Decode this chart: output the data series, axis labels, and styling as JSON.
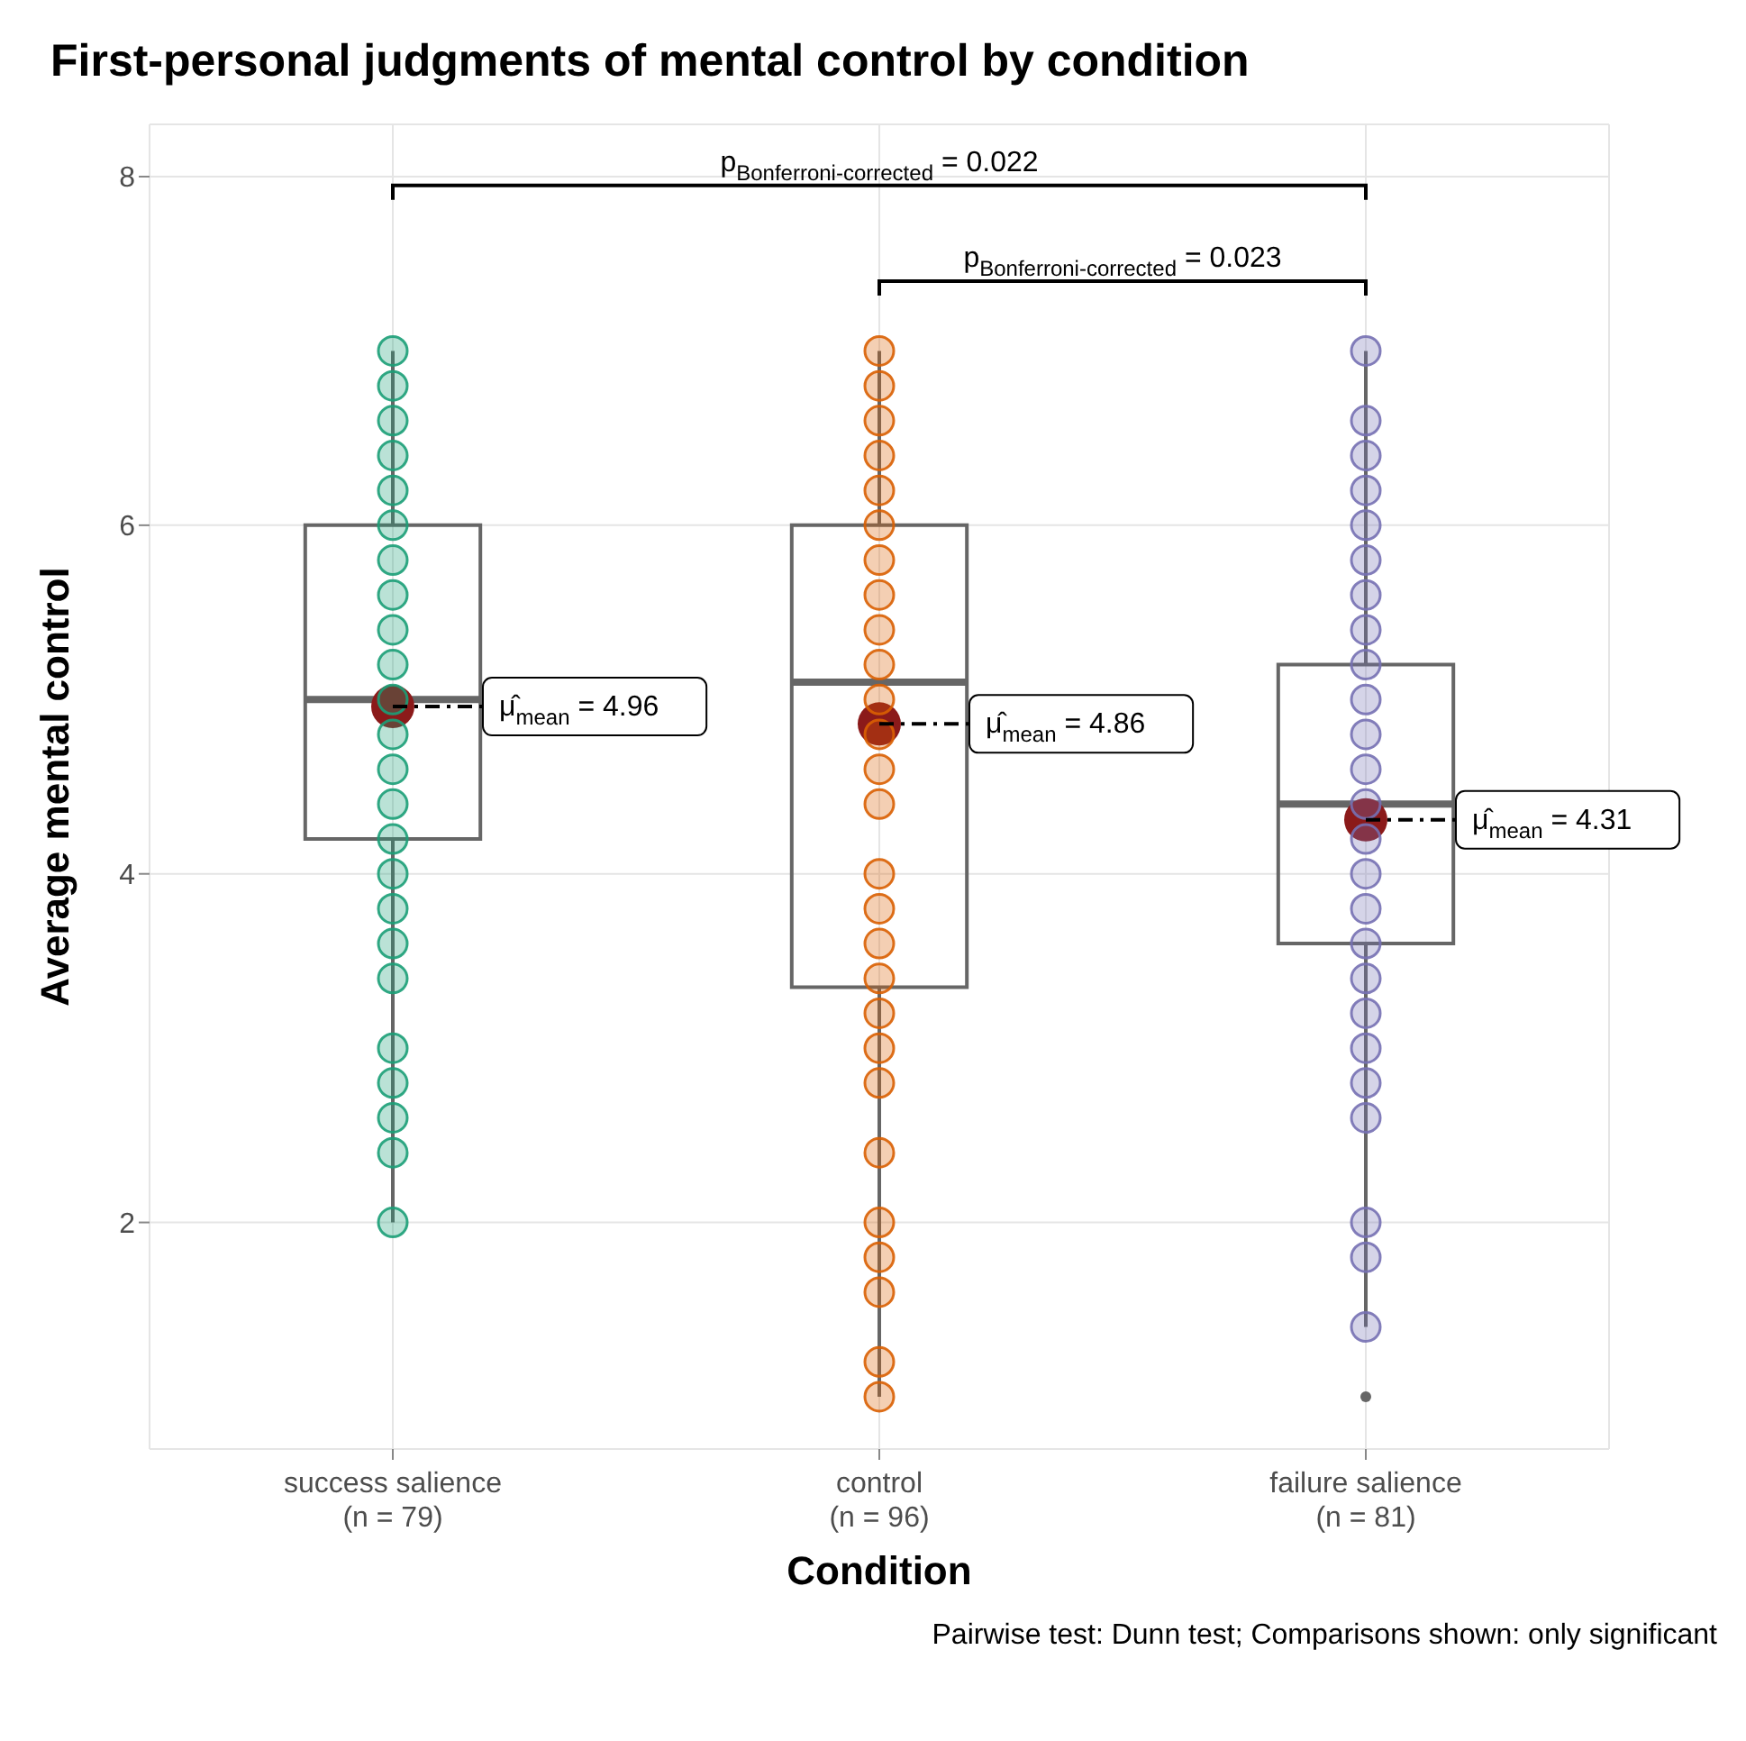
{
  "chart_data": {
    "type": "box",
    "title": "First-personal judgments of mental control by condition",
    "xlabel": "Condition",
    "ylabel": "Average mental control",
    "categories": [
      "success salience\n(n = 79)",
      "control\n(n = 96)",
      "failure salience\n(n = 81)"
    ],
    "boxes": [
      {
        "low": 2,
        "q1": 4.2,
        "median": 5,
        "q3": 6,
        "high": 7,
        "mean": 4.96
      },
      {
        "low": 1,
        "q1": 3.35,
        "median": 5.1,
        "q3": 6,
        "high": 7,
        "mean": 4.86
      },
      {
        "low": 1.4,
        "q1": 3.6,
        "median": 4.4,
        "q3": 5.2,
        "high": 7,
        "mean": 4.31,
        "outliers": [
          1
        ]
      }
    ],
    "series": [
      {
        "type": "scatter",
        "color": "#1b9e77",
        "x": [
          "success salience\n(n = 79)",
          "success salience\n(n = 79)",
          "success salience\n(n = 79)",
          "success salience\n(n = 79)",
          "success salience\n(n = 79)",
          "success salience\n(n = 79)",
          "success salience\n(n = 79)",
          "success salience\n(n = 79)",
          "success salience\n(n = 79)",
          "success salience\n(n = 79)",
          "success salience\n(n = 79)",
          "success salience\n(n = 79)",
          "success salience\n(n = 79)",
          "success salience\n(n = 79)",
          "success salience\n(n = 79)",
          "success salience\n(n = 79)",
          "success salience\n(n = 79)",
          "success salience\n(n = 79)",
          "success salience\n(n = 79)",
          "success salience\n(n = 79)",
          "success salience\n(n = 79)",
          "success salience\n(n = 79)",
          "success salience\n(n = 79)",
          "success salience\n(n = 79)"
        ],
        "values": [
          7,
          6.8,
          6.6,
          6.4,
          6.2,
          6,
          5.8,
          5.6,
          5.4,
          5.2,
          5,
          4.8,
          4.6,
          4.4,
          4.2,
          4,
          3.8,
          3.6,
          3.4,
          3,
          2.8,
          2.6,
          2.4,
          2
        ]
      },
      {
        "type": "scatter",
        "color": "#d95f02",
        "x": [
          "control\n(n = 96)",
          "control\n(n = 96)",
          "control\n(n = 96)",
          "control\n(n = 96)",
          "control\n(n = 96)",
          "control\n(n = 96)",
          "control\n(n = 96)",
          "control\n(n = 96)",
          "control\n(n = 96)",
          "control\n(n = 96)",
          "control\n(n = 96)",
          "control\n(n = 96)",
          "control\n(n = 96)",
          "control\n(n = 96)",
          "control\n(n = 96)",
          "control\n(n = 96)",
          "control\n(n = 96)",
          "control\n(n = 96)",
          "control\n(n = 96)",
          "control\n(n = 96)",
          "control\n(n = 96)",
          "control\n(n = 96)",
          "control\n(n = 96)",
          "control\n(n = 96)",
          "control\n(n = 96)",
          "control\n(n = 96)",
          "control\n(n = 96)"
        ],
        "values": [
          7,
          6.8,
          6.6,
          6.4,
          6.2,
          6,
          5.8,
          5.6,
          5.4,
          5.2,
          5,
          4.8,
          4.6,
          4.4,
          4,
          3.8,
          3.6,
          3.4,
          3.2,
          3,
          2.8,
          2.4,
          2,
          1.8,
          1.6,
          1.2,
          1
        ]
      },
      {
        "type": "scatter",
        "color": "#7570b3",
        "x": [
          "failure salience\n(n = 81)",
          "failure salience\n(n = 81)",
          "failure salience\n(n = 81)",
          "failure salience\n(n = 81)",
          "failure salience\n(n = 81)",
          "failure salience\n(n = 81)",
          "failure salience\n(n = 81)",
          "failure salience\n(n = 81)",
          "failure salience\n(n = 81)",
          "failure salience\n(n = 81)",
          "failure salience\n(n = 81)",
          "failure salience\n(n = 81)",
          "failure salience\n(n = 81)",
          "failure salience\n(n = 81)",
          "failure salience\n(n = 81)",
          "failure salience\n(n = 81)",
          "failure salience\n(n = 81)",
          "failure salience\n(n = 81)",
          "failure salience\n(n = 81)",
          "failure salience\n(n = 81)",
          "failure salience\n(n = 81)",
          "failure salience\n(n = 81)",
          "failure salience\n(n = 81)",
          "failure salience\n(n = 81)",
          "failure salience\n(n = 81)"
        ],
        "values": [
          7,
          6.6,
          6.4,
          6.2,
          6,
          5.8,
          5.6,
          5.4,
          5.2,
          5,
          4.8,
          4.6,
          4.4,
          4.2,
          4,
          3.8,
          3.6,
          3.4,
          3.2,
          3,
          2.8,
          2.6,
          2,
          1.8,
          1.4
        ]
      }
    ],
    "ylim": [
      0.7,
      8.3
    ],
    "yticks": [
      2,
      4,
      6,
      8
    ],
    "grid": true,
    "annotations": [
      "μ̂$_{mean}$ = 4.96",
      "μ̂$_{mean}$ = 4.86",
      "μ̂$_{mean}$ = 4.31",
      "p$_{Bonferroni-corrected}$ = 0.022",
      "p$_{Bonferroni-corrected}$ = 0.023",
      "Pairwise test: Dunn test; Comparisons shown: only significant"
    ]
  }
}
